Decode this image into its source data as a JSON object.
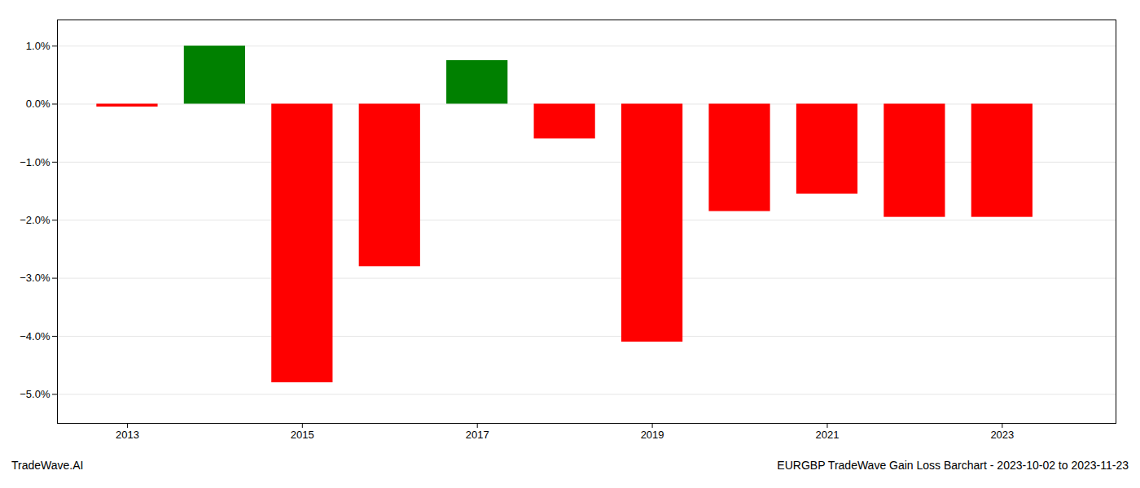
{
  "chart_data": {
    "type": "bar",
    "x": [
      2013,
      2014,
      2015,
      2016,
      2017,
      2018,
      2019,
      2020,
      2021,
      2022,
      2023
    ],
    "values": [
      -0.05,
      1.0,
      -4.8,
      -2.8,
      0.75,
      -0.6,
      -4.1,
      -1.85,
      -1.55,
      -1.95,
      -1.95
    ],
    "colors": [
      "#FF0000",
      "#008000",
      "#FF0000",
      "#FF0000",
      "#008000",
      "#FF0000",
      "#FF0000",
      "#FF0000",
      "#FF0000",
      "#FF0000",
      "#FF0000"
    ],
    "xlim": [
      2012.2,
      2024.3
    ],
    "xticks": [
      2013,
      2015,
      2017,
      2019,
      2021,
      2023
    ],
    "ylim": [
      -5.5,
      1.45
    ],
    "yticks": [
      {
        "value": 1.0,
        "label": "1.0%"
      },
      {
        "value": 0.0,
        "label": "0.0%"
      },
      {
        "value": -1.0,
        "label": "−1.0%"
      },
      {
        "value": -2.0,
        "label": "−2.0%"
      },
      {
        "value": -3.0,
        "label": "−3.0%"
      },
      {
        "value": -4.0,
        "label": "−4.0%"
      },
      {
        "value": -5.0,
        "label": "−5.0%"
      }
    ],
    "grid": true,
    "annotations": [
      "TradeWave.AI",
      "EURGBP TradeWave Gain Loss Barchart - 2023-10-02 to 2023-11-23"
    ]
  }
}
